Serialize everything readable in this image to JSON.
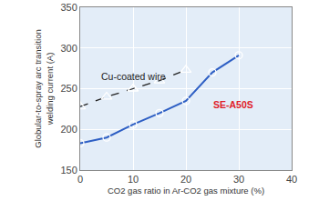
{
  "chart_data": {
    "type": "line",
    "xlabel": "CO2 gas ratio in Ar-CO2 gas mixture (%)",
    "ylabel": "Globular-to-spray arc transition\nwelding current (A)",
    "xlim": [
      0,
      40
    ],
    "xticks": [
      0,
      10,
      20,
      30,
      40
    ],
    "ylim": [
      150,
      350
    ],
    "yticks": [
      150,
      200,
      250,
      300,
      350
    ],
    "grid": true,
    "series": [
      {
        "name": "Cu-coated wire",
        "color": "#222222",
        "line_style": "dashed",
        "marker": "triangle-up-open",
        "x": [
          0,
          5,
          10,
          15,
          20
        ],
        "values": [
          228,
          240,
          250,
          260,
          273
        ]
      },
      {
        "name": "SE-A50S",
        "color": "#2e5fc4",
        "line_style": "solid",
        "marker": "circle-open",
        "x": [
          0,
          5,
          10,
          15,
          20,
          25,
          30
        ],
        "values": [
          183,
          190,
          206,
          220,
          235,
          270,
          291
        ]
      }
    ]
  }
}
